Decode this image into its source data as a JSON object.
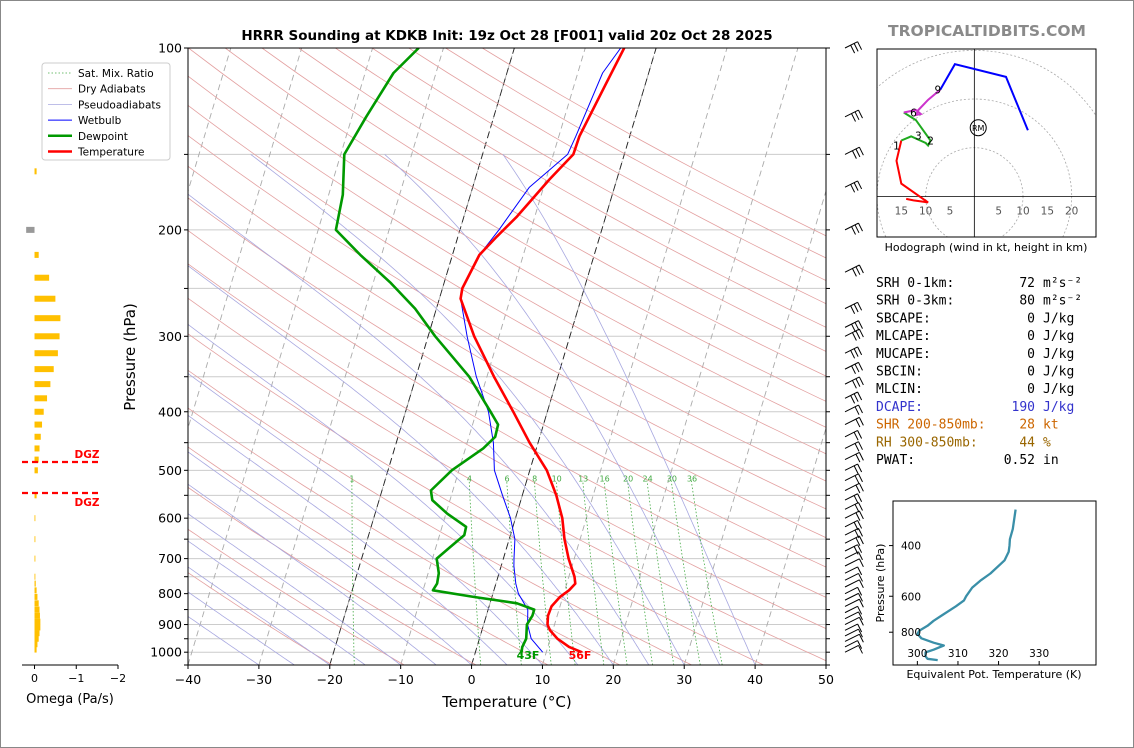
{
  "title": "HRRR Sounding at KDKB Init: 19z Oct 28 [F001] valid 20z Oct 28 2025",
  "brand": "TROPICALTIDBITS.COM",
  "colors": {
    "temperature": "#ff0000",
    "dewpoint": "#009900",
    "wetbulb": "#0000ff",
    "dgz": "#ff0000",
    "omega": "#ffc000",
    "theta_e": "#3a8fa8",
    "hodo_0_1": "#ff0000",
    "hodo_1_3": "#1faa1f",
    "hodo_3_6": "#cc33cc",
    "hodo_6_9": "#0000ff",
    "dcape": "#3333cc",
    "shr": "#cc6600",
    "rh": "#996600"
  },
  "skewt": {
    "xlabel": "Temperature (°C)",
    "ylabel": "Pressure (hPa)",
    "xticks": [
      "−40",
      "−30",
      "−20",
      "−10",
      "0",
      "10",
      "20",
      "30",
      "40",
      "50"
    ],
    "yticks": [
      "100",
      "200",
      "300",
      "400",
      "500",
      "600",
      "700",
      "800",
      "900",
      "1000"
    ],
    "mix_labels": [
      "1",
      "4",
      "6",
      "8",
      "10",
      "13",
      "16",
      "20",
      "24",
      "30",
      "36"
    ],
    "surface_dewpoint_label": "43F",
    "surface_temp_label": "56F",
    "legend": [
      "Sat. Mix. Ratio",
      "Dry Adiabats",
      "Pseudoadiabats",
      "Wetbulb",
      "Dewpoint",
      "Temperature"
    ]
  },
  "omega": {
    "xlabel": "Omega (Pa/s)",
    "xticks": [
      "0",
      "−1",
      "−2"
    ],
    "dgz_label": "DGZ"
  },
  "hodograph": {
    "caption": "Hodograph (wind in kt, height in km)",
    "xticks": [
      "15",
      "10",
      "5",
      "5",
      "10",
      "15",
      "20"
    ],
    "height_labels": [
      "1",
      "2",
      "3",
      "6",
      "9"
    ],
    "rm_label": "RM"
  },
  "indices": [
    {
      "label": "SRH 0-1km:",
      "value": "72",
      "unit": "m²s⁻²",
      "color": "#000000"
    },
    {
      "label": "SRH 0-3km:",
      "value": "80",
      "unit": "m²s⁻²",
      "color": "#000000"
    },
    {
      "label": "SBCAPE:",
      "value": "0",
      "unit": "J/kg",
      "color": "#000000"
    },
    {
      "label": "MLCAPE:",
      "value": "0",
      "unit": "J/kg",
      "color": "#000000"
    },
    {
      "label": "MUCAPE:",
      "value": "0",
      "unit": "J/kg",
      "color": "#000000"
    },
    {
      "label": "SBCIN:",
      "value": "0",
      "unit": "J/kg",
      "color": "#000000"
    },
    {
      "label": "MLCIN:",
      "value": "0",
      "unit": "J/kg",
      "color": "#000000"
    },
    {
      "label": "DCAPE:",
      "value": "190",
      "unit": "J/kg",
      "color": "#3333cc"
    },
    {
      "label": "SHR 200-850mb:",
      "value": "28",
      "unit": "kt",
      "color": "#cc6600"
    },
    {
      "label": "RH 300-850mb:",
      "value": "44",
      "unit": "%",
      "color": "#996600"
    },
    {
      "label": "PWAT:",
      "value": "0.52",
      "unit": "in",
      "color": "#000000"
    }
  ],
  "theta_e_panel": {
    "xlabel": "Equivalent Pot. Temperature (K)",
    "ylabel": "Pressure (hPa)",
    "xticks": [
      "300",
      "310",
      "320",
      "330"
    ],
    "yticks": [
      "400",
      "600",
      "800"
    ]
  },
  "chart_data": [
    {
      "type": "line",
      "name": "skew-t",
      "xlim": [
        -40,
        50
      ],
      "ylim": [
        1050,
        100
      ],
      "log_pressure": true,
      "series": [
        {
          "name": "Temperature",
          "points": [
            [
              1000,
              15
            ],
            [
              980,
              13
            ],
            [
              950,
              11
            ],
            [
              920,
              9.6
            ],
            [
              900,
              9
            ],
            [
              870,
              8.7
            ],
            [
              840,
              8.8
            ],
            [
              810,
              9.6
            ],
            [
              790,
              10.6
            ],
            [
              770,
              11.2
            ],
            [
              750,
              10.8
            ],
            [
              700,
              9.2
            ],
            [
              650,
              7.8
            ],
            [
              600,
              6.6
            ],
            [
              550,
              4.8
            ],
            [
              500,
              2.4
            ],
            [
              450,
              -1.2
            ],
            [
              400,
              -4.8
            ],
            [
              350,
              -9
            ],
            [
              300,
              -13.5
            ],
            [
              260,
              -17
            ],
            [
              250,
              -17.2
            ],
            [
              220,
              -16.2
            ],
            [
              205,
              -14.5
            ],
            [
              190,
              -12.5
            ],
            [
              165,
              -9.5
            ],
            [
              150,
              -7.2
            ],
            [
              140,
              -7.1
            ],
            [
              115,
              -5.6
            ],
            [
              100,
              -4.5
            ]
          ]
        },
        {
          "name": "Dewpoint",
          "points": [
            [
              1000,
              6.5
            ],
            [
              980,
              6.4
            ],
            [
              950,
              6.6
            ],
            [
              900,
              6.1
            ],
            [
              870,
              6.5
            ],
            [
              850,
              6.5
            ],
            [
              830,
              3.8
            ],
            [
              810,
              -2.6
            ],
            [
              790,
              -8.6
            ],
            [
              770,
              -8.3
            ],
            [
              740,
              -8.5
            ],
            [
              700,
              -9.4
            ],
            [
              670,
              -8
            ],
            [
              640,
              -6.5
            ],
            [
              620,
              -6.6
            ],
            [
              590,
              -9.8
            ],
            [
              560,
              -12.5
            ],
            [
              540,
              -13.1
            ],
            [
              500,
              -11
            ],
            [
              460,
              -7.5
            ],
            [
              440,
              -6.3
            ],
            [
              420,
              -6.4
            ],
            [
              400,
              -8
            ],
            [
              350,
              -12.5
            ],
            [
              300,
              -19
            ],
            [
              270,
              -23
            ],
            [
              245,
              -27.5
            ],
            [
              220,
              -33
            ],
            [
              200,
              -37.5
            ],
            [
              175,
              -38
            ],
            [
              150,
              -39.5
            ],
            [
              130,
              -38
            ],
            [
              110,
              -36
            ],
            [
              100,
              -33.5
            ]
          ]
        },
        {
          "name": "Wetbulb",
          "points": [
            [
              1000,
              9.5
            ],
            [
              950,
              7.3
            ],
            [
              900,
              6.2
            ],
            [
              850,
              5.6
            ],
            [
              800,
              3.6
            ],
            [
              770,
              2.8
            ],
            [
              720,
              1.8
            ],
            [
              700,
              1.5
            ],
            [
              650,
              0.8
            ],
            [
              600,
              -0.7
            ],
            [
              550,
              -2.8
            ],
            [
              500,
              -5
            ],
            [
              450,
              -6.3
            ],
            [
              400,
              -8.3
            ],
            [
              350,
              -11.5
            ],
            [
              300,
              -14.5
            ],
            [
              260,
              -17
            ],
            [
              250,
              -17.2
            ],
            [
              220,
              -16.2
            ],
            [
              200,
              -14.5
            ],
            [
              170,
              -12
            ],
            [
              150,
              -8
            ],
            [
              140,
              -7.6
            ],
            [
              110,
              -6.5
            ],
            [
              100,
              -5
            ]
          ]
        }
      ]
    },
    {
      "type": "bar",
      "name": "omega",
      "xlim": [
        0.3,
        -2
      ],
      "points": [
        [
          990,
          -0.05
        ],
        [
          970,
          -0.07
        ],
        [
          950,
          -0.1
        ],
        [
          930,
          -0.12
        ],
        [
          910,
          -0.14
        ],
        [
          890,
          -0.14
        ],
        [
          870,
          -0.13
        ],
        [
          850,
          -0.12
        ],
        [
          830,
          -0.1
        ],
        [
          810,
          -0.07
        ],
        [
          790,
          -0.05
        ],
        [
          770,
          -0.03
        ],
        [
          750,
          -0.02
        ],
        [
          700,
          -0.02
        ],
        [
          650,
          -0.02
        ],
        [
          600,
          -0.02
        ],
        [
          550,
          -0.05
        ],
        [
          500,
          -0.08
        ],
        [
          480,
          -0.1
        ],
        [
          460,
          -0.12
        ],
        [
          440,
          -0.15
        ],
        [
          420,
          -0.18
        ],
        [
          400,
          -0.22
        ],
        [
          380,
          -0.3
        ],
        [
          360,
          -0.38
        ],
        [
          340,
          -0.46
        ],
        [
          320,
          -0.56
        ],
        [
          300,
          -0.6
        ],
        [
          280,
          -0.62
        ],
        [
          260,
          -0.5
        ],
        [
          240,
          -0.35
        ],
        [
          220,
          -0.1
        ],
        [
          200,
          0.2
        ],
        [
          160,
          -0.05
        ]
      ]
    },
    {
      "type": "line",
      "name": "hodograph",
      "segments": [
        {
          "layer": "0-1km",
          "points": [
            [
              -14,
              -0.5
            ],
            [
              -12.5,
              -0.8
            ],
            [
              -9.5,
              -1.2
            ],
            [
              -15,
              2.5
            ],
            [
              -16,
              7
            ],
            [
              -15,
              11
            ]
          ]
        },
        {
          "layer": "1-3km",
          "points": [
            [
              -15,
              11
            ],
            [
              -13,
              11.8
            ],
            [
              -10,
              10.5
            ],
            [
              -9.5,
              10
            ],
            [
              -9,
              11
            ],
            [
              -12,
              15
            ],
            [
              -14.5,
              16.5
            ]
          ]
        },
        {
          "layer": "3-6km",
          "points": [
            [
              -14.5,
              16.5
            ],
            [
              -12,
              17
            ],
            [
              -11,
              16.2
            ],
            [
              -12,
              16
            ],
            [
              -11.5,
              17
            ],
            [
              -9.5,
              19
            ],
            [
              -7,
              21
            ]
          ]
        },
        {
          "layer": "6-9km",
          "points": [
            [
              -7,
              21
            ],
            [
              -4,
              26
            ],
            [
              6.5,
              23.5
            ],
            [
              11,
              13
            ]
          ]
        }
      ],
      "storm_motion_RM": [
        0.8,
        13.5
      ],
      "xlim": [
        -20,
        25
      ],
      "ylim": [
        -8,
        29
      ]
    },
    {
      "type": "line",
      "name": "theta-e profile",
      "xlim": [
        294,
        344
      ],
      "ylim": [
        1040,
        280
      ],
      "points": [
        [
          1000,
          305
        ],
        [
          990,
          302.5
        ],
        [
          970,
          302
        ],
        [
          940,
          302
        ],
        [
          920,
          304
        ],
        [
          890,
          306.5
        ],
        [
          870,
          304
        ],
        [
          840,
          301
        ],
        [
          810,
          300
        ],
        [
          790,
          300.5
        ],
        [
          760,
          302.5
        ],
        [
          730,
          304
        ],
        [
          700,
          306
        ],
        [
          650,
          309.5
        ],
        [
          620,
          311.5
        ],
        [
          600,
          312
        ],
        [
          560,
          313.5
        ],
        [
          530,
          315.5
        ],
        [
          500,
          318
        ],
        [
          450,
          321.5
        ],
        [
          420,
          322.5
        ],
        [
          400,
          322.7
        ],
        [
          380,
          322.8
        ],
        [
          350,
          323.5
        ],
        [
          300,
          324.2
        ]
      ]
    }
  ]
}
